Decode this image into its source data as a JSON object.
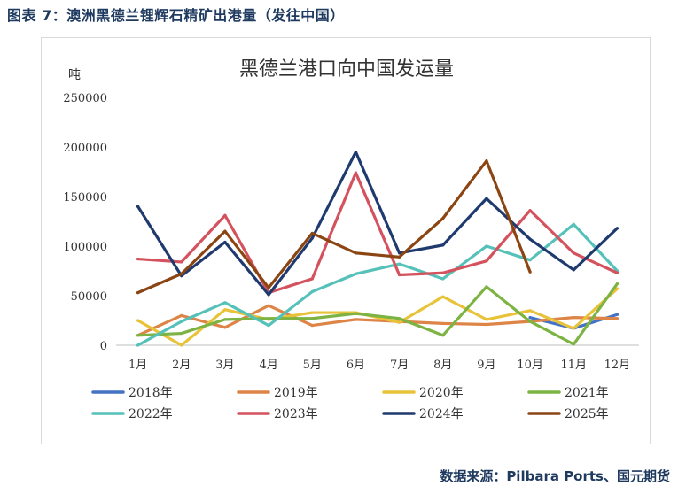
{
  "figure_title": "图表 7：澳洲黑德兰锂辉石精矿出港量（发往中国）",
  "source": "数据来源：Pilbara Ports、国元期货",
  "chart_data": {
    "type": "line",
    "title": "黑德兰港口向中国发运量",
    "unit_label": "吨",
    "categories": [
      "1月",
      "2月",
      "3月",
      "4月",
      "5月",
      "6月",
      "7月",
      "8月",
      "9月",
      "10月",
      "11月",
      "12月"
    ],
    "ylim": [
      0,
      250000
    ],
    "yticks": [
      0,
      50000,
      100000,
      150000,
      200000,
      250000
    ],
    "grid": false,
    "legend": "bottom",
    "series": [
      {
        "name": "2018年",
        "color": "#4472c4",
        "values": [
          null,
          null,
          null,
          null,
          null,
          null,
          null,
          null,
          null,
          28000,
          17000,
          31000
        ]
      },
      {
        "name": "2019年",
        "color": "#dd8447",
        "values": [
          10000,
          30000,
          18000,
          40000,
          20000,
          26000,
          24000,
          22000,
          21000,
          24000,
          28000,
          27000
        ]
      },
      {
        "name": "2020年",
        "color": "#e8c33a",
        "values": [
          25000,
          0,
          36000,
          26000,
          33000,
          33000,
          23000,
          49000,
          26000,
          35000,
          17000,
          57000
        ]
      },
      {
        "name": "2021年",
        "color": "#7cb342",
        "values": [
          10000,
          12000,
          26000,
          27000,
          27000,
          32000,
          27000,
          10000,
          59000,
          24000,
          1000,
          62000
        ]
      },
      {
        "name": "2022年",
        "color": "#55c1b9",
        "values": [
          0,
          24000,
          43000,
          20000,
          54000,
          72000,
          82000,
          67000,
          100000,
          86000,
          122000,
          75000
        ]
      },
      {
        "name": "2023年",
        "color": "#d4525d",
        "values": [
          87000,
          84000,
          131000,
          53000,
          67000,
          174000,
          71000,
          73000,
          85000,
          136000,
          93000,
          73000
        ]
      },
      {
        "name": "2024年",
        "color": "#1f3a6e",
        "values": [
          140000,
          70000,
          104000,
          51000,
          108000,
          195000,
          93000,
          101000,
          148000,
          107000,
          76000,
          118000
        ]
      },
      {
        "name": "2025年",
        "color": "#8b4513",
        "values": [
          53000,
          72000,
          115000,
          58000,
          113000,
          93000,
          89000,
          128000,
          186000,
          74000,
          null,
          null
        ]
      }
    ]
  }
}
